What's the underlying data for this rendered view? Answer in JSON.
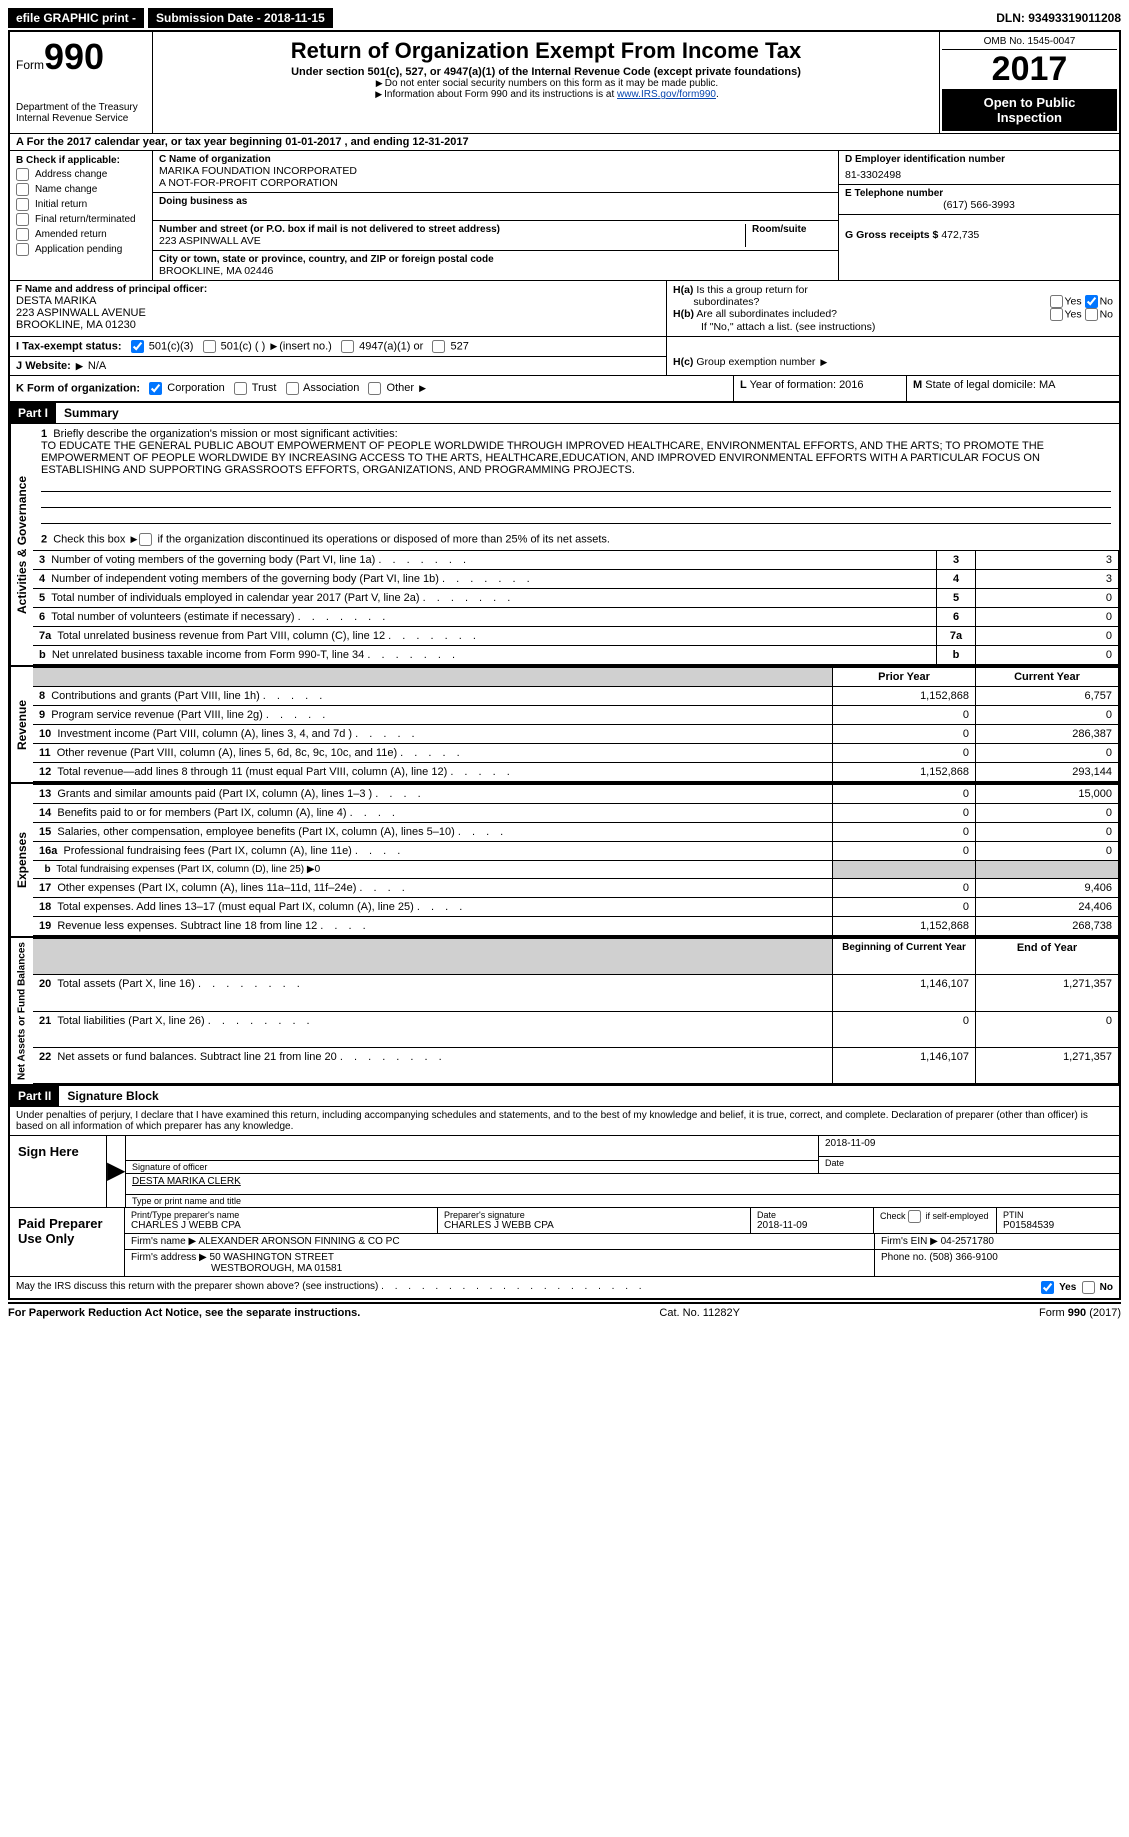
{
  "topbar": {
    "efile": "efile GRAPHIC print -",
    "submission_label": "Submission Date - 2018-11-15",
    "dln": "DLN: 93493319011208"
  },
  "header": {
    "form_prefix": "Form",
    "form_number": "990",
    "dept1": "Department of the Treasury",
    "dept2": "Internal Revenue Service",
    "title": "Return of Organization Exempt From Income Tax",
    "subtitle": "Under section 501(c), 527, or 4947(a)(1) of the Internal Revenue Code (except private foundations)",
    "note1": "Do not enter social security numbers on this form as it may be made public.",
    "note2_prefix": "Information about Form 990 and its instructions is at ",
    "note2_link": "www.IRS.gov/form990",
    "omb": "OMB No. 1545-0047",
    "year": "2017",
    "open1": "Open to Public",
    "open2": "Inspection"
  },
  "section_a": "For the 2017 calendar year, or tax year beginning 01-01-2017   , and ending 12-31-2017",
  "section_b": {
    "label": "Check if applicable:",
    "opts": [
      "Address change",
      "Name change",
      "Initial return",
      "Final return/terminated",
      "Amended return",
      "Application pending"
    ]
  },
  "org": {
    "c_label": "C Name of organization",
    "name1": "MARIKA FOUNDATION INCORPORATED",
    "name2": "A NOT-FOR-PROFIT CORPORATION",
    "dba_label": "Doing business as",
    "street_label": "Number and street (or P.O. box if mail is not delivered to street address)",
    "room_label": "Room/suite",
    "street": "223 ASPINWALL AVE",
    "city_label": "City or town, state or province, country, and ZIP or foreign postal code",
    "city": "BROOKLINE, MA  02446"
  },
  "right_col": {
    "d_label": "D Employer identification number",
    "ein": "81-3302498",
    "e_label": "E Telephone number",
    "phone": "(617) 566-3993",
    "g_label": "G Gross receipts $",
    "g_value": "472,735"
  },
  "officer": {
    "f_label": "F  Name and address of principal officer:",
    "name": "DESTA MARIKA",
    "street": "223 ASPINWALL AVENUE",
    "city": "BROOKLINE, MA  01230"
  },
  "h": {
    "ha_label": "Is this a group return for",
    "ha_label2": "subordinates?",
    "hb_label": "Are all subordinates included?",
    "hb_note": "If \"No,\" attach a list. (see instructions)",
    "hc_label": "Group exemption number",
    "yes": "Yes",
    "no": "No"
  },
  "line_i": {
    "label": "Tax-exempt status:",
    "opt1": "501(c)(3)",
    "opt2": "501(c) (  )",
    "opt2_note": "(insert no.)",
    "opt3": "4947(a)(1) or",
    "opt4": "527"
  },
  "line_j": {
    "label": "Website:",
    "value": "N/A"
  },
  "line_k": {
    "label": "Form of organization:",
    "opts": [
      "Corporation",
      "Trust",
      "Association",
      "Other"
    ]
  },
  "line_l": {
    "label": "Year of formation:",
    "value": "2016"
  },
  "line_m": {
    "label": "State of legal domicile:",
    "value": "MA"
  },
  "part1": {
    "header": "Part I",
    "title": "Summary",
    "side_ag": "Activities & Governance",
    "side_rev": "Revenue",
    "side_exp": "Expenses",
    "side_net": "Net Assets or Fund Balances",
    "q1": "Briefly describe the organization's mission or most significant activities:",
    "mission": "TO EDUCATE THE GENERAL PUBLIC ABOUT EMPOWERMENT OF PEOPLE WORLDWIDE THROUGH IMPROVED HEALTHCARE, ENVIRONMENTAL EFFORTS, AND THE ARTS; TO PROMOTE THE EMPOWERMENT OF PEOPLE WORLDWIDE BY INCREASING ACCESS TO THE ARTS, HEALTHCARE,EDUCATION, AND IMPROVED ENVIRONMENTAL EFFORTS WITH A PARTICULAR FOCUS ON ESTABLISHING AND SUPPORTING GRASSROOTS EFFORTS, ORGANIZATIONS, AND PROGRAMMING PROJECTS.",
    "q2": "Check this box  if the organization discontinued its operations or disposed of more than 25% of its net assets.",
    "rows_gov": [
      {
        "n": "3",
        "d": "Number of voting members of the governing body (Part VI, line 1a)",
        "v": "3"
      },
      {
        "n": "4",
        "d": "Number of independent voting members of the governing body (Part VI, line 1b)",
        "v": "3"
      },
      {
        "n": "5",
        "d": "Total number of individuals employed in calendar year 2017 (Part V, line 2a)",
        "v": "0"
      },
      {
        "n": "6",
        "d": "Total number of volunteers (estimate if necessary)",
        "v": "0"
      },
      {
        "n": "7a",
        "d": "Total unrelated business revenue from Part VIII, column (C), line 12",
        "v": "0"
      },
      {
        "n": "b",
        "d": "Net unrelated business taxable income from Form 990-T, line 34",
        "v": "0"
      }
    ],
    "col_prior": "Prior Year",
    "col_current": "Current Year",
    "rows_rev": [
      {
        "n": "8",
        "d": "Contributions and grants (Part VIII, line 1h)",
        "p": "1,152,868",
        "c": "6,757"
      },
      {
        "n": "9",
        "d": "Program service revenue (Part VIII, line 2g)",
        "p": "0",
        "c": "0"
      },
      {
        "n": "10",
        "d": "Investment income (Part VIII, column (A), lines 3, 4, and 7d )",
        "p": "0",
        "c": "286,387"
      },
      {
        "n": "11",
        "d": "Other revenue (Part VIII, column (A), lines 5, 6d, 8c, 9c, 10c, and 11e)",
        "p": "0",
        "c": "0"
      },
      {
        "n": "12",
        "d": "Total revenue—add lines 8 through 11 (must equal Part VIII, column (A), line 12)",
        "p": "1,152,868",
        "c": "293,144"
      }
    ],
    "rows_exp": [
      {
        "n": "13",
        "d": "Grants and similar amounts paid (Part IX, column (A), lines 1–3 )",
        "p": "0",
        "c": "15,000"
      },
      {
        "n": "14",
        "d": "Benefits paid to or for members (Part IX, column (A), line 4)",
        "p": "0",
        "c": "0"
      },
      {
        "n": "15",
        "d": "Salaries, other compensation, employee benefits (Part IX, column (A), lines 5–10)",
        "p": "0",
        "c": "0"
      },
      {
        "n": "16a",
        "d": "Professional fundraising fees (Part IX, column (A), line 11e)",
        "p": "0",
        "c": "0"
      },
      {
        "n": "b",
        "d": "Total fundraising expenses (Part IX, column (D), line 25) ▶0",
        "p": "shade",
        "c": "shade"
      },
      {
        "n": "17",
        "d": "Other expenses (Part IX, column (A), lines 11a–11d, 11f–24e)",
        "p": "0",
        "c": "9,406"
      },
      {
        "n": "18",
        "d": "Total expenses. Add lines 13–17 (must equal Part IX, column (A), line 25)",
        "p": "0",
        "c": "24,406"
      },
      {
        "n": "19",
        "d": "Revenue less expenses. Subtract line 18 from line 12",
        "p": "1,152,868",
        "c": "268,738"
      }
    ],
    "col_begin": "Beginning of Current Year",
    "col_end": "End of Year",
    "rows_net": [
      {
        "n": "20",
        "d": "Total assets (Part X, line 16)",
        "p": "1,146,107",
        "c": "1,271,357"
      },
      {
        "n": "21",
        "d": "Total liabilities (Part X, line 26)",
        "p": "0",
        "c": "0"
      },
      {
        "n": "22",
        "d": "Net assets or fund balances. Subtract line 21 from line 20",
        "p": "1,146,107",
        "c": "1,271,357"
      }
    ]
  },
  "part2": {
    "header": "Part II",
    "title": "Signature Block",
    "perjury": "Under penalties of perjury, I declare that I have examined this return, including accompanying schedules and statements, and to the best of my knowledge and belief, it is true, correct, and complete. Declaration of preparer (other than officer) is based on all information of which preparer has any knowledge.",
    "sign_here": "Sign Here",
    "sig_officer_label": "Signature of officer",
    "sig_date": "2018-11-09",
    "date_label": "Date",
    "officer_name": "DESTA MARIKA CLERK",
    "officer_name_label": "Type or print name and title",
    "paid_label": "Paid Preparer Use Only",
    "prep_name_label": "Print/Type preparer's name",
    "prep_name": "CHARLES J WEBB CPA",
    "prep_sig_label": "Preparer's signature",
    "prep_sig": "CHARLES J WEBB CPA",
    "prep_date_label": "Date",
    "prep_date": "2018-11-09",
    "self_emp_label": "Check         if self-employed",
    "ptin_label": "PTIN",
    "ptin": "P01584539",
    "firm_name_label": "Firm's name     ▶",
    "firm_name": "ALEXANDER ARONSON FINNING & CO PC",
    "firm_ein_label": "Firm's EIN ▶",
    "firm_ein": "04-2571780",
    "firm_addr_label": "Firm's address ▶",
    "firm_addr1": "50 WASHINGTON STREET",
    "firm_addr2": "WESTBOROUGH, MA  01581",
    "firm_phone_label": "Phone no.",
    "firm_phone": "(508) 366-9100",
    "discuss": "May the IRS discuss this return with the preparer shown above? (see instructions)"
  },
  "footer": {
    "left": "For Paperwork Reduction Act Notice, see the separate instructions.",
    "center": "Cat. No. 11282Y",
    "right_form": "Form",
    "right_num": "990",
    "right_year": "(2017)"
  }
}
